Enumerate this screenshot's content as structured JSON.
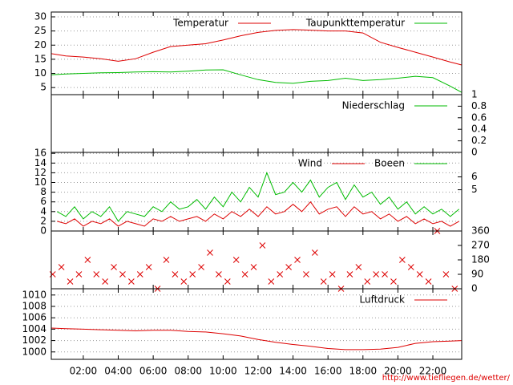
{
  "chart_data": [
    {
      "type": "line",
      "x": [
        0.17,
        1,
        2,
        3,
        4,
        5,
        6,
        7,
        8,
        9,
        10,
        11,
        12,
        13,
        14,
        15,
        16,
        17,
        18,
        19,
        20,
        21,
        22,
        23,
        23.65
      ],
      "series": [
        {
          "name": "Temperatur",
          "color": "#dd0000",
          "values": [
            17,
            16.2,
            15.8,
            15.2,
            14.3,
            15.2,
            17.5,
            19.5,
            20,
            20.5,
            21.8,
            23.3,
            24.5,
            25.2,
            25.5,
            25.3,
            25,
            25,
            24.3,
            21,
            19.2,
            17.5,
            15.8,
            14,
            13
          ]
        },
        {
          "name": "Taupunkttemperatur",
          "color": "#00bb00",
          "values": [
            9.5,
            9.8,
            10,
            10.2,
            10.3,
            10.5,
            10.6,
            10.5,
            10.8,
            11.2,
            11.3,
            9.5,
            7.8,
            6.8,
            6.5,
            7.2,
            7.5,
            8.3,
            7.5,
            7.8,
            8.3,
            9,
            8.5,
            5.5,
            3.3
          ]
        }
      ],
      "ylim": [
        2.5,
        31.7
      ],
      "yticks": [
        5,
        10,
        15,
        20,
        25,
        30
      ],
      "grid": true
    },
    {
      "type": "line",
      "x": [
        0.17,
        23.65
      ],
      "series": [
        {
          "name": "Niederschlag",
          "color": "#00bb00",
          "axis": "y2",
          "values": [
            0,
            0
          ]
        }
      ],
      "y2lim": [
        0,
        1
      ],
      "y2ticks": [
        0,
        0.2,
        0.4,
        0.6,
        0.8,
        1
      ],
      "grid": false
    },
    {
      "type": "line",
      "x": [
        0.5,
        1,
        1.5,
        2,
        2.5,
        3,
        3.5,
        4,
        4.5,
        5,
        5.5,
        6,
        6.5,
        7,
        7.5,
        8,
        8.5,
        9,
        9.5,
        10,
        10.5,
        11,
        11.5,
        12,
        12.5,
        13,
        13.5,
        14,
        14.5,
        15,
        15.5,
        16,
        16.5,
        17,
        17.5,
        18,
        18.5,
        19,
        19.5,
        20,
        20.5,
        21,
        21.5,
        22,
        22.5,
        23,
        23.5
      ],
      "series": [
        {
          "name": "Wind",
          "color": "#dd0000",
          "values": [
            2,
            1.5,
            2.5,
            1,
            2,
            1.5,
            2.5,
            1,
            2,
            1.5,
            1,
            2.5,
            2,
            3,
            2,
            2.5,
            3,
            2,
            3.5,
            2.5,
            4,
            3,
            4.5,
            3,
            5,
            3.5,
            4,
            5.5,
            4,
            6,
            3.5,
            4.5,
            5,
            3,
            5,
            3.5,
            4,
            2.5,
            3.5,
            2,
            3,
            1.5,
            2.5,
            1.5,
            2,
            1,
            2
          ]
        },
        {
          "name": "Boeen",
          "color": "#00bb00",
          "values": [
            4,
            3,
            5,
            2.5,
            4,
            3,
            5,
            2,
            4,
            3.5,
            3,
            5,
            4,
            6,
            4.5,
            5,
            6.5,
            4.5,
            7,
            5,
            8,
            6,
            9,
            7,
            12,
            7.5,
            8,
            10,
            8,
            10.5,
            7,
            9,
            10,
            6.5,
            9.5,
            7,
            8,
            5.5,
            7,
            4.5,
            6,
            3.5,
            5,
            3.5,
            4.5,
            3,
            4.5
          ]
        }
      ],
      "ylim": [
        0,
        16.2
      ],
      "yticks": [
        0,
        2,
        4,
        6,
        8,
        10,
        12,
        14,
        16
      ],
      "y2lim": [
        1.8,
        7.9
      ],
      "y2ticks": [
        5,
        6
      ],
      "grid": true
    },
    {
      "type": "scatter",
      "x": [
        0.25,
        0.75,
        1.25,
        1.75,
        2.25,
        2.75,
        3.25,
        3.75,
        4.25,
        4.75,
        5.25,
        5.75,
        6.25,
        6.75,
        7.25,
        7.75,
        8.25,
        8.75,
        9.25,
        9.75,
        10.25,
        10.75,
        11.25,
        11.75,
        12.25,
        12.75,
        13.25,
        13.75,
        14.25,
        14.75,
        15.25,
        15.75,
        16.25,
        16.75,
        17.25,
        17.75,
        18.25,
        18.75,
        19.25,
        19.75,
        20.25,
        20.75,
        21.25,
        21.75,
        22.25,
        22.75,
        23.25
      ],
      "series": [
        {
          "color": "#dd0000",
          "axis": "y2",
          "values": [
            90,
            135,
            45,
            90,
            180,
            90,
            45,
            135,
            90,
            45,
            90,
            135,
            0,
            180,
            90,
            45,
            90,
            135,
            225,
            90,
            45,
            180,
            90,
            135,
            270,
            45,
            90,
            135,
            180,
            90,
            225,
            45,
            90,
            0,
            90,
            135,
            45,
            90,
            90,
            45,
            180,
            135,
            90,
            45,
            360,
            90,
            0
          ]
        }
      ],
      "y2lim": [
        0,
        360
      ],
      "y2ticks": [
        0,
        90,
        180,
        270,
        360
      ],
      "grid": false
    },
    {
      "type": "line",
      "x": [
        0.17,
        1,
        2,
        3,
        4,
        5,
        6,
        7,
        8,
        9,
        10,
        11,
        12,
        13,
        14,
        15,
        16,
        17,
        18,
        19,
        20,
        21,
        22,
        23,
        23.65
      ],
      "series": [
        {
          "name": "Luftdruck",
          "color": "#dd0000",
          "values": [
            1004.2,
            1004.1,
            1004,
            1003.9,
            1003.8,
            1003.7,
            1003.8,
            1003.8,
            1003.6,
            1003.5,
            1003.2,
            1002.8,
            1002.2,
            1001.7,
            1001.3,
            1001,
            1000.6,
            1000.4,
            1000.4,
            1000.5,
            1000.8,
            1001.5,
            1001.8,
            1001.9,
            1002
          ]
        }
      ],
      "ylim": [
        998.7,
        1011.1
      ],
      "yticks": [
        1000,
        1002,
        1004,
        1006,
        1008,
        1010
      ],
      "xlim": [
        0.17,
        23.65
      ],
      "xticks": [
        {
          "value": 2,
          "label": "02:00"
        },
        {
          "value": 4,
          "label": "04:00"
        },
        {
          "value": 6,
          "label": "06:00"
        },
        {
          "value": 8,
          "label": "08:00"
        },
        {
          "value": 10,
          "label": "10:00"
        },
        {
          "value": 12,
          "label": "12:00"
        },
        {
          "value": 14,
          "label": "14:00"
        },
        {
          "value": 16,
          "label": "16:00"
        },
        {
          "value": 18,
          "label": "18:00"
        },
        {
          "value": 20,
          "label": "20:00"
        },
        {
          "value": 22,
          "label": "22:00"
        }
      ],
      "grid": true
    }
  ],
  "footer": "http://www.tiefliegen.de/wetter/"
}
